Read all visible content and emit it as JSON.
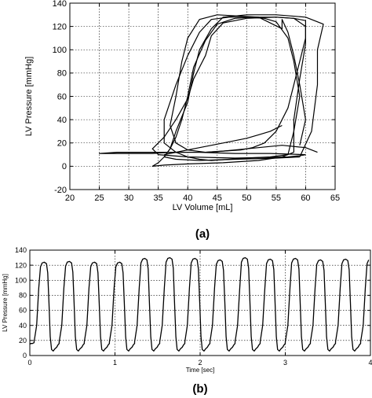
{
  "chart_data": [
    {
      "type": "line",
      "panel_label": "(a)",
      "xlabel": "LV Volume [mL]",
      "ylabel": "LV Pressure [mmHg]",
      "xlim": [
        20,
        65
      ],
      "ylim": [
        -20,
        140
      ],
      "xticks": [
        20,
        25,
        30,
        35,
        40,
        45,
        50,
        55,
        60,
        65
      ],
      "yticks": [
        -20,
        0,
        20,
        40,
        60,
        80,
        100,
        120,
        140
      ],
      "grid": true,
      "line_color": "#000000",
      "series": [
        {
          "x": [
            60,
            59,
            57,
            48,
            40,
            35,
            34,
            36,
            38,
            40,
            41,
            43,
            44,
            46,
            50,
            55,
            58,
            60,
            60,
            59,
            58,
            57,
            55,
            53,
            51,
            49,
            46,
            43,
            40,
            37,
            34,
            30,
            27,
            25,
            28,
            32,
            36,
            42,
            48,
            54,
            60
          ],
          "y": [
            10,
            9,
            8,
            7,
            8,
            10,
            15,
            25,
            40,
            58,
            75,
            95,
            112,
            123,
            127,
            128,
            127,
            125,
            110,
            90,
            70,
            50,
            30,
            20,
            16,
            14,
            13,
            12,
            12,
            12,
            11,
            11,
            11,
            11,
            12,
            12,
            12,
            12,
            11,
            11,
            10
          ]
        },
        {
          "x": [
            59,
            60,
            59,
            58,
            57,
            56,
            56,
            52,
            45,
            42,
            40,
            39,
            38,
            37,
            38,
            40,
            43,
            46,
            50,
            56,
            60,
            62
          ],
          "y": [
            18,
            40,
            70,
            95,
            115,
            126,
            118,
            128,
            130,
            126,
            110,
            90,
            60,
            35,
            20,
            14,
            12,
            13,
            15,
            18,
            16,
            12
          ]
        },
        {
          "x": [
            57,
            58,
            59,
            58,
            57,
            55,
            53,
            50,
            47,
            44,
            42,
            40,
            38,
            36,
            36,
            38,
            40,
            42,
            44,
            47,
            50,
            54,
            57
          ],
          "y": [
            10,
            30,
            60,
            90,
            110,
            124,
            127,
            128,
            128,
            126,
            115,
            95,
            70,
            40,
            20,
            12,
            8,
            6,
            5,
            6,
            7,
            8,
            10
          ]
        },
        {
          "x": [
            59,
            61,
            62,
            62,
            63,
            60,
            55,
            50,
            46,
            44,
            42,
            41,
            40,
            38,
            37,
            36,
            38,
            42,
            48,
            55,
            59
          ],
          "y": [
            8,
            30,
            70,
            100,
            122,
            128,
            130,
            130,
            128,
            118,
            100,
            80,
            55,
            30,
            15,
            8,
            6,
            5,
            6,
            7,
            8
          ]
        },
        {
          "x": [
            58,
            58,
            59,
            60,
            60,
            58,
            55,
            51,
            48,
            45,
            43,
            41,
            40,
            39,
            38,
            37,
            36,
            35,
            34,
            36,
            40,
            46,
            52,
            56,
            58
          ],
          "y": [
            12,
            40,
            75,
            105,
            120,
            127,
            128,
            128,
            127,
            122,
            108,
            85,
            60,
            40,
            25,
            15,
            8,
            3,
            0,
            1,
            2,
            3,
            5,
            8,
            12
          ]
        },
        {
          "x": [
            36,
            39,
            42,
            46,
            50,
            52,
            54,
            56
          ],
          "y": [
            10,
            13,
            16,
            20,
            24,
            27,
            30,
            35
          ]
        }
      ]
    },
    {
      "type": "line",
      "panel_label": "(b)",
      "xlabel": "Time [sec]",
      "ylabel": "LV Pressure [mmHg]",
      "xlim": [
        0,
        4
      ],
      "ylim": [
        0,
        140
      ],
      "xticks": [
        0,
        1,
        2,
        3,
        4
      ],
      "yticks": [
        0,
        20,
        40,
        60,
        80,
        100,
        120,
        140
      ],
      "grid": true,
      "line_color": "#000000",
      "beats": {
        "start_times": [
          0.05,
          0.345,
          0.64,
          0.935,
          1.23,
          1.525,
          1.82,
          2.115,
          2.41,
          2.705,
          3.0,
          3.295,
          3.59,
          3.885
        ],
        "peak_mmHg": [
          124,
          125,
          124,
          124,
          129,
          130,
          129,
          127,
          130,
          128,
          129,
          127,
          128,
          128
        ],
        "baseline_mmHg": 8,
        "period_sec": 0.295
      },
      "series": [
        {
          "x": [
            0,
            0.01,
            0.03,
            0.05
          ],
          "y": [
            15,
            16,
            16,
            17
          ]
        }
      ]
    }
  ]
}
